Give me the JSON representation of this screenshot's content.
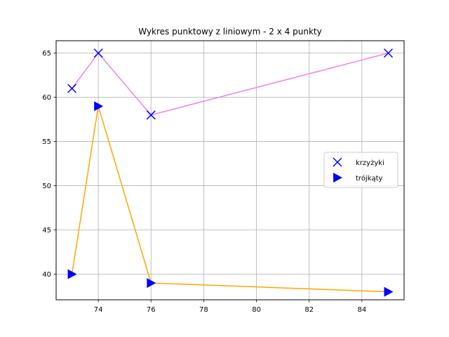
{
  "chart_data": {
    "type": "scatter",
    "title": "Wykres punktowy z liniowym - 2 x 4 punkty",
    "xlabel": "",
    "ylabel": "",
    "xlim": [
      72.4,
      85.6
    ],
    "ylim": [
      37.1,
      66.4
    ],
    "xticks": [
      74,
      76,
      78,
      80,
      82,
      84
    ],
    "yticks": [
      40,
      45,
      50,
      55,
      60,
      65
    ],
    "grid": true,
    "legend_position": "center-right",
    "series": [
      {
        "name": "krzyżyki",
        "marker": "x",
        "marker_color": "#0000ff",
        "line_color": "#ee82ee",
        "x": [
          73,
          74,
          76,
          85
        ],
        "y": [
          61,
          65,
          58,
          65
        ]
      },
      {
        "name": "trójkąty",
        "marker": "triangle-right",
        "marker_color": "#0000ff",
        "line_color": "#ffa500",
        "x": [
          73,
          74,
          76,
          85
        ],
        "y": [
          40,
          59,
          39,
          38
        ]
      }
    ]
  }
}
